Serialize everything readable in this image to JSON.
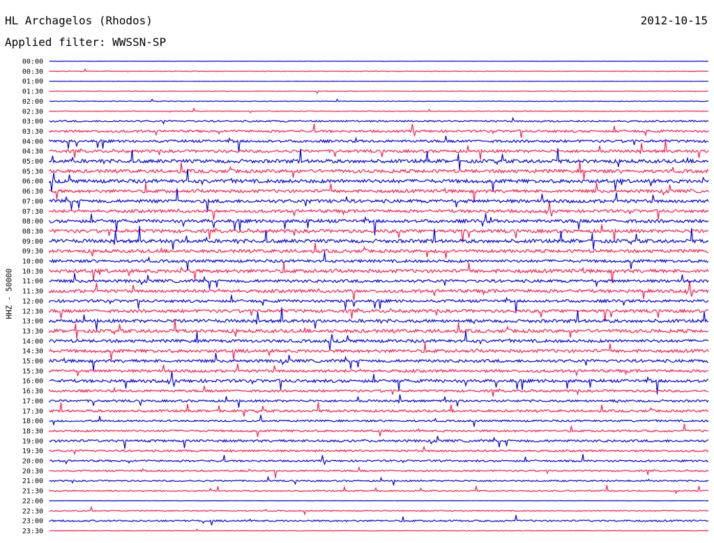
{
  "header": {
    "station": "HL Archagelos (Rhodos)",
    "date": "2012-10-15",
    "filter": "Applied filter: WWSSN-SP"
  },
  "axis": {
    "ylabel": "HHZ - 50000"
  },
  "colors": {
    "odd_trace": "#0000e0",
    "even_trace": "#ff1a4a",
    "background": "#ffffff"
  },
  "chart_data": {
    "type": "line",
    "title": "HL Archagelos (Rhodos)",
    "ylabel": "HHZ - 50000",
    "row_labels": [
      "00:00",
      "00:30",
      "01:00",
      "01:30",
      "02:00",
      "02:30",
      "03:00",
      "03:30",
      "04:00",
      "04:30",
      "05:00",
      "05:30",
      "06:00",
      "06:30",
      "07:00",
      "07:30",
      "08:00",
      "08:30",
      "09:00",
      "09:30",
      "10:00",
      "10:30",
      "11:00",
      "11:30",
      "12:00",
      "12:30",
      "13:00",
      "13:30",
      "14:00",
      "14:30",
      "15:00",
      "15:30",
      "16:00",
      "16:30",
      "17:00",
      "17:30",
      "18:00",
      "18:30",
      "19:00",
      "19:30",
      "20:00",
      "20:30",
      "21:00",
      "21:30",
      "22:00",
      "22:30",
      "23:00",
      "23:30"
    ],
    "activity_level": [
      0.2,
      0.6,
      0.2,
      0.6,
      0.6,
      0.8,
      1.8,
      2.6,
      2.8,
      3,
      3.8,
      3.6,
      3.8,
      3.4,
      3.6,
      3.2,
      3.6,
      3.6,
      3.8,
      3.4,
      3,
      3.8,
      3.2,
      3.4,
      3,
      3.4,
      3.4,
      3.6,
      3.2,
      3.4,
      3.2,
      3,
      3.4,
      2.6,
      2.4,
      2.6,
      2,
      2.2,
      2.6,
      2.2,
      2,
      1.8,
      1.6,
      1.4,
      0.2,
      1.2,
      1.8,
      0.6
    ],
    "grid": false,
    "legend": "none"
  }
}
